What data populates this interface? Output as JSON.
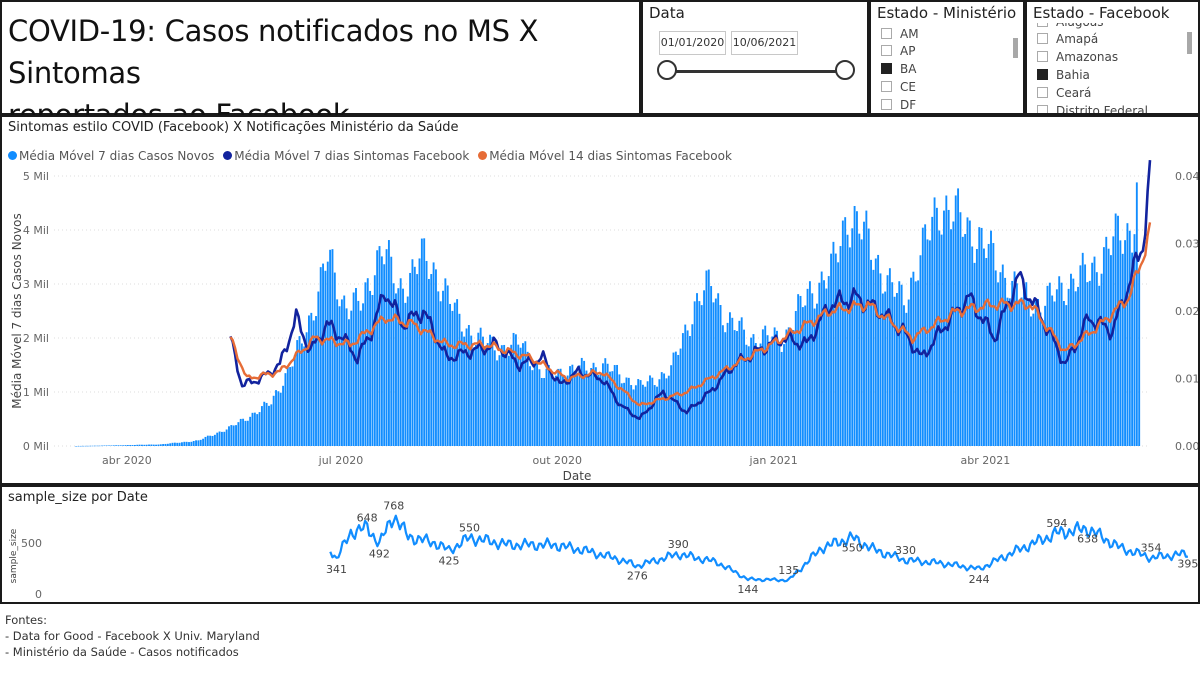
{
  "header": {
    "title_line1": "COVID-19: Casos notificados no MS X Sintomas",
    "title_line2": "reportados ao Facebook"
  },
  "date_slicer": {
    "title": "Data",
    "start": "01/01/2020",
    "end": "10/06/2021"
  },
  "ms_slicer": {
    "title": "Estado - Ministério",
    "items": [
      {
        "label": "AM",
        "checked": false
      },
      {
        "label": "AP",
        "checked": false
      },
      {
        "label": "BA",
        "checked": true
      },
      {
        "label": "CE",
        "checked": false
      },
      {
        "label": "DF",
        "checked": false
      }
    ]
  },
  "fb_slicer": {
    "title": "Estado - Facebook",
    "partial_top": "Alagoas",
    "items": [
      {
        "label": "Amapá",
        "checked": false
      },
      {
        "label": "Amazonas",
        "checked": false
      },
      {
        "label": "Bahia",
        "checked": true
      },
      {
        "label": "Ceará",
        "checked": false
      },
      {
        "label": "Distrito Federal",
        "checked": false
      }
    ]
  },
  "colors": {
    "cases": "#118DFF",
    "symptoms7": "#12239E",
    "symptoms14": "#E66C37",
    "sample": "#118DFF"
  },
  "chart_data": [
    {
      "type": "bar",
      "title": "Sintomas estilo COVID (Facebook) X Notificações Ministério da Saúde",
      "xlabel": "Date",
      "ylabel": "Média Móvel 7 dias Casos Novos",
      "legend": [
        "Média Móvel 7 dias Casos Novos",
        "Média Móvel 7 dias Sintomas Facebook",
        "Média Móvel 14 dias Sintomas Facebook"
      ],
      "legend_position": "top-left",
      "x_range": [
        "2020-03-01",
        "2021-06-10"
      ],
      "x_ticks": [
        "abr 2020",
        "jul 2020",
        "out 2020",
        "jan 2021",
        "abr 2021"
      ],
      "y_left_ticks": [
        "0 Mil",
        "1 Mil",
        "2 Mil",
        "3 Mil",
        "4 Mil",
        "5 Mil"
      ],
      "y_left_range": [
        0,
        5000
      ],
      "y_right_ticks": [
        "0.00",
        "0.01",
        "0.02",
        "0.03",
        "0.04"
      ],
      "y_right_range": [
        0,
        0.04
      ],
      "grid": true,
      "cases_7d": {
        "name": "Média Móvel 7 dias Casos Novos",
        "points": [
          [
            "2020-03-10",
            0
          ],
          [
            "2020-03-25",
            10
          ],
          [
            "2020-04-15",
            30
          ],
          [
            "2020-05-01",
            100
          ],
          [
            "2020-05-15",
            350
          ],
          [
            "2020-06-01",
            800
          ],
          [
            "2020-06-15",
            2000
          ],
          [
            "2020-06-25",
            3500
          ],
          [
            "2020-07-01",
            2700
          ],
          [
            "2020-07-10",
            2600
          ],
          [
            "2020-07-18",
            3800
          ],
          [
            "2020-07-25",
            2800
          ],
          [
            "2020-08-03",
            3500
          ],
          [
            "2020-08-12",
            3100
          ],
          [
            "2020-08-20",
            2300
          ],
          [
            "2020-08-28",
            2000
          ],
          [
            "2020-09-05",
            1800
          ],
          [
            "2020-09-15",
            1900
          ],
          [
            "2020-09-25",
            1300
          ],
          [
            "2020-10-05",
            1400
          ],
          [
            "2020-10-20",
            1500
          ],
          [
            "2020-11-05",
            1100
          ],
          [
            "2020-11-18",
            1400
          ],
          [
            "2020-11-28",
            2600
          ],
          [
            "2020-12-05",
            3000
          ],
          [
            "2020-12-12",
            2300
          ],
          [
            "2020-12-22",
            2000
          ],
          [
            "2021-01-05",
            2000
          ],
          [
            "2021-01-15",
            2800
          ],
          [
            "2021-01-25",
            3200
          ],
          [
            "2021-02-01",
            4300
          ],
          [
            "2021-02-10",
            3800
          ],
          [
            "2021-02-18",
            3000
          ],
          [
            "2021-02-25",
            2700
          ],
          [
            "2021-03-05",
            3600
          ],
          [
            "2021-03-12",
            4500
          ],
          [
            "2021-03-20",
            4200
          ],
          [
            "2021-03-28",
            3900
          ],
          [
            "2021-04-05",
            3400
          ],
          [
            "2021-04-15",
            2800
          ],
          [
            "2021-04-25",
            2600
          ],
          [
            "2021-05-05",
            3000
          ],
          [
            "2021-05-15",
            3200
          ],
          [
            "2021-05-25",
            3800
          ],
          [
            "2021-06-02",
            4000
          ],
          [
            "2021-06-04",
            4900
          ],
          [
            "2021-06-05",
            3000
          ]
        ]
      },
      "symptoms_7d": {
        "name": "Média Móvel 7 dias Sintomas Facebook",
        "points": [
          [
            "2020-05-15",
            0.016
          ],
          [
            "2020-05-20",
            0.009
          ],
          [
            "2020-05-28",
            0.01
          ],
          [
            "2020-06-05",
            0.012
          ],
          [
            "2020-06-12",
            0.019
          ],
          [
            "2020-06-18",
            0.014
          ],
          [
            "2020-06-25",
            0.018
          ],
          [
            "2020-07-02",
            0.016
          ],
          [
            "2020-07-08",
            0.013
          ],
          [
            "2020-07-14",
            0.017
          ],
          [
            "2020-07-20",
            0.023
          ],
          [
            "2020-07-27",
            0.018
          ],
          [
            "2020-08-05",
            0.02
          ],
          [
            "2020-08-15",
            0.013
          ],
          [
            "2020-08-25",
            0.014
          ],
          [
            "2020-09-05",
            0.015
          ],
          [
            "2020-09-15",
            0.012
          ],
          [
            "2020-09-25",
            0.013
          ],
          [
            "2020-10-02",
            0.009
          ],
          [
            "2020-10-10",
            0.011
          ],
          [
            "2020-10-20",
            0.01
          ],
          [
            "2020-10-28",
            0.006
          ],
          [
            "2020-11-05",
            0.004
          ],
          [
            "2020-11-15",
            0.008
          ],
          [
            "2020-11-25",
            0.005
          ],
          [
            "2020-12-05",
            0.008
          ],
          [
            "2020-12-15",
            0.012
          ],
          [
            "2020-12-25",
            0.014
          ],
          [
            "2021-01-05",
            0.016
          ],
          [
            "2021-01-15",
            0.015
          ],
          [
            "2021-01-25",
            0.021
          ],
          [
            "2021-02-05",
            0.022
          ],
          [
            "2021-02-15",
            0.02
          ],
          [
            "2021-02-25",
            0.017
          ],
          [
            "2021-03-05",
            0.013
          ],
          [
            "2021-03-15",
            0.018
          ],
          [
            "2021-03-25",
            0.022
          ],
          [
            "2021-04-05",
            0.016
          ],
          [
            "2021-04-15",
            0.025
          ],
          [
            "2021-04-25",
            0.019
          ],
          [
            "2021-05-05",
            0.012
          ],
          [
            "2021-05-15",
            0.019
          ],
          [
            "2021-05-25",
            0.017
          ],
          [
            "2021-06-02",
            0.025
          ],
          [
            "2021-06-07",
            0.03
          ],
          [
            "2021-06-10",
            0.04
          ]
        ]
      },
      "symptoms_14d": {
        "name": "Média Móvel 14 dias Sintomas Facebook",
        "points": [
          [
            "2020-05-15",
            0.016
          ],
          [
            "2020-05-22",
            0.01
          ],
          [
            "2020-06-05",
            0.011
          ],
          [
            "2020-06-20",
            0.016
          ],
          [
            "2020-07-05",
            0.015
          ],
          [
            "2020-07-20",
            0.019
          ],
          [
            "2020-08-01",
            0.018
          ],
          [
            "2020-08-15",
            0.015
          ],
          [
            "2020-09-01",
            0.015
          ],
          [
            "2020-09-20",
            0.013
          ],
          [
            "2020-10-05",
            0.01
          ],
          [
            "2020-10-20",
            0.011
          ],
          [
            "2020-11-05",
            0.006
          ],
          [
            "2020-11-25",
            0.008
          ],
          [
            "2020-12-15",
            0.012
          ],
          [
            "2021-01-05",
            0.016
          ],
          [
            "2021-01-25",
            0.02
          ],
          [
            "2021-02-10",
            0.021
          ],
          [
            "2021-03-01",
            0.016
          ],
          [
            "2021-03-20",
            0.02
          ],
          [
            "2021-04-05",
            0.021
          ],
          [
            "2021-04-20",
            0.021
          ],
          [
            "2021-05-05",
            0.014
          ],
          [
            "2021-05-20",
            0.018
          ],
          [
            "2021-06-01",
            0.022
          ],
          [
            "2021-06-07",
            0.028
          ],
          [
            "2021-06-10",
            0.032
          ]
        ]
      }
    },
    {
      "type": "line",
      "title": "sample_size por Date",
      "xlabel": "",
      "ylabel": "sample_size",
      "x_range": [
        "2020-03-01",
        "2021-06-10"
      ],
      "y_ticks": [
        "0",
        "500"
      ],
      "ylim": [
        0,
        800
      ],
      "series": [
        {
          "name": "sample_size",
          "points": [
            [
              "2020-05-15",
              440
            ],
            [
              "2020-05-18",
              341
            ],
            [
              "2020-05-25",
              600
            ],
            [
              "2020-06-02",
              648
            ],
            [
              "2020-06-08",
              492
            ],
            [
              "2020-06-15",
              768
            ],
            [
              "2020-06-22",
              560
            ],
            [
              "2020-07-05",
              500
            ],
            [
              "2020-07-12",
              425
            ],
            [
              "2020-07-22",
              550
            ],
            [
              "2020-08-10",
              480
            ],
            [
              "2020-09-01",
              480
            ],
            [
              "2020-09-15",
              430
            ],
            [
              "2020-10-01",
              350
            ],
            [
              "2020-10-12",
              276
            ],
            [
              "2020-11-01",
              390
            ],
            [
              "2020-11-20",
              310
            ],
            [
              "2020-12-05",
              144
            ],
            [
              "2020-12-25",
              135
            ],
            [
              "2021-01-10",
              450
            ],
            [
              "2021-01-25",
              550
            ],
            [
              "2021-02-05",
              430
            ],
            [
              "2021-02-20",
              330
            ],
            [
              "2021-03-10",
              300
            ],
            [
              "2021-03-28",
              244
            ],
            [
              "2021-04-15",
              420
            ],
            [
              "2021-05-05",
              594
            ],
            [
              "2021-05-20",
              638
            ],
            [
              "2021-06-05",
              450
            ],
            [
              "2021-06-20",
              354
            ],
            [
              "2021-07-08",
              395
            ]
          ]
        }
      ],
      "data_labels": [
        {
          "date": "2020-05-18",
          "value": 341,
          "text": "341"
        },
        {
          "date": "2020-06-02",
          "value": 648,
          "text": "648"
        },
        {
          "date": "2020-06-08",
          "value": 492,
          "text": "492"
        },
        {
          "date": "2020-06-15",
          "value": 768,
          "text": "768"
        },
        {
          "date": "2020-07-12",
          "value": 425,
          "text": "425"
        },
        {
          "date": "2020-07-22",
          "value": 550,
          "text": "550"
        },
        {
          "date": "2020-10-12",
          "value": 276,
          "text": "276"
        },
        {
          "date": "2020-11-01",
          "value": 390,
          "text": "390"
        },
        {
          "date": "2020-12-05",
          "value": 144,
          "text": "144"
        },
        {
          "date": "2020-12-25",
          "value": 135,
          "text": "135"
        },
        {
          "date": "2021-01-25",
          "value": 550,
          "text": "550"
        },
        {
          "date": "2021-02-20",
          "value": 330,
          "text": "330"
        },
        {
          "date": "2021-03-28",
          "value": 244,
          "text": "244"
        },
        {
          "date": "2021-05-05",
          "value": 594,
          "text": "594"
        },
        {
          "date": "2021-05-20",
          "value": 638,
          "text": "638"
        },
        {
          "date": "2021-06-20",
          "value": 354,
          "text": "354"
        },
        {
          "date": "2021-07-08",
          "value": 395,
          "text": "395"
        }
      ]
    }
  ],
  "sources": {
    "heading": "Fontes:",
    "line1": "- Data for Good - Facebook X Univ. Maryland",
    "line2": "- Ministério da Saúde - Casos notificados"
  }
}
